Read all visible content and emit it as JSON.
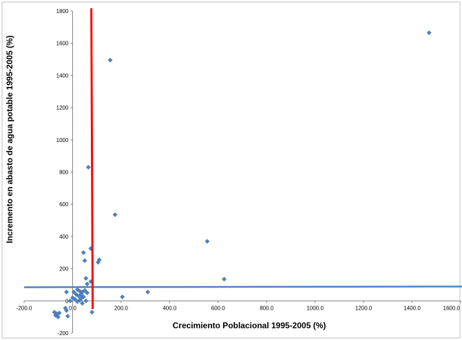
{
  "chart_data": {
    "type": "scatter",
    "xlabel": "Crecimiento Poblacional  1995-2005 (%)",
    "ylabel": "Incremento en abasto de agua potable 1995-2005  (%)",
    "xlim": [
      -200,
      1600
    ],
    "ylim": [
      -200,
      1800
    ],
    "x_ticks": [
      -200,
      0,
      200,
      400,
      600,
      800,
      1000,
      1200,
      1400,
      1600
    ],
    "x_tick_labels": [
      "-200.0",
      "0.0",
      "200.0",
      "400.0",
      "600.0",
      "800.0",
      "1000.0",
      "1200.0",
      "1400.0",
      "1600.0"
    ],
    "y_ticks": [
      -200,
      0,
      200,
      400,
      600,
      800,
      1000,
      1200,
      1400,
      1600,
      1800
    ],
    "y_tick_labels": [
      "-200",
      "0",
      "200",
      "400",
      "600",
      "800",
      "1000",
      "1200",
      "1400",
      "1600",
      "1800"
    ],
    "grid": false,
    "legend": "none",
    "colors": {
      "points": "#4F81BD",
      "vertical_line": "#FF0000",
      "horizontal_line": "#4F81BD",
      "frame": "#BFBFBF"
    },
    "reference_lines": {
      "vertical_x": 80,
      "horizontal_y": 85
    },
    "points": [
      {
        "x": 1470,
        "y": 1665
      },
      {
        "x": 155,
        "y": 1495
      },
      {
        "x": 65,
        "y": 830
      },
      {
        "x": 175,
        "y": 535
      },
      {
        "x": 555,
        "y": 370
      },
      {
        "x": 75,
        "y": 325
      },
      {
        "x": 45,
        "y": 300
      },
      {
        "x": 110,
        "y": 255
      },
      {
        "x": 50,
        "y": 250
      },
      {
        "x": 105,
        "y": 240
      },
      {
        "x": 625,
        "y": 135
      },
      {
        "x": 55,
        "y": 140
      },
      {
        "x": 75,
        "y": 120
      },
      {
        "x": 60,
        "y": 105
      },
      {
        "x": 310,
        "y": 55
      },
      {
        "x": 205,
        "y": 25
      },
      {
        "x": -25,
        "y": 55
      },
      {
        "x": 5,
        "y": 55
      },
      {
        "x": 20,
        "y": 70
      },
      {
        "x": 30,
        "y": 60
      },
      {
        "x": 40,
        "y": 55
      },
      {
        "x": 50,
        "y": 65
      },
      {
        "x": 35,
        "y": 40
      },
      {
        "x": 15,
        "y": 40
      },
      {
        "x": 25,
        "y": 30
      },
      {
        "x": 45,
        "y": 25
      },
      {
        "x": 0,
        "y": 20
      },
      {
        "x": 10,
        "y": 10
      },
      {
        "x": 30,
        "y": 5
      },
      {
        "x": 55,
        "y": 0
      },
      {
        "x": -10,
        "y": 0
      },
      {
        "x": 20,
        "y": -5
      },
      {
        "x": 40,
        "y": -15
      },
      {
        "x": 35,
        "y": 15
      },
      {
        "x": 60,
        "y": 50
      },
      {
        "x": -30,
        "y": -45
      },
      {
        "x": -25,
        "y": -60
      },
      {
        "x": -20,
        "y": -95
      },
      {
        "x": -55,
        "y": -75
      },
      {
        "x": -65,
        "y": -80
      },
      {
        "x": -75,
        "y": -70
      },
      {
        "x": -70,
        "y": -90
      },
      {
        "x": -60,
        "y": -100
      },
      {
        "x": 80,
        "y": -70
      }
    ]
  }
}
